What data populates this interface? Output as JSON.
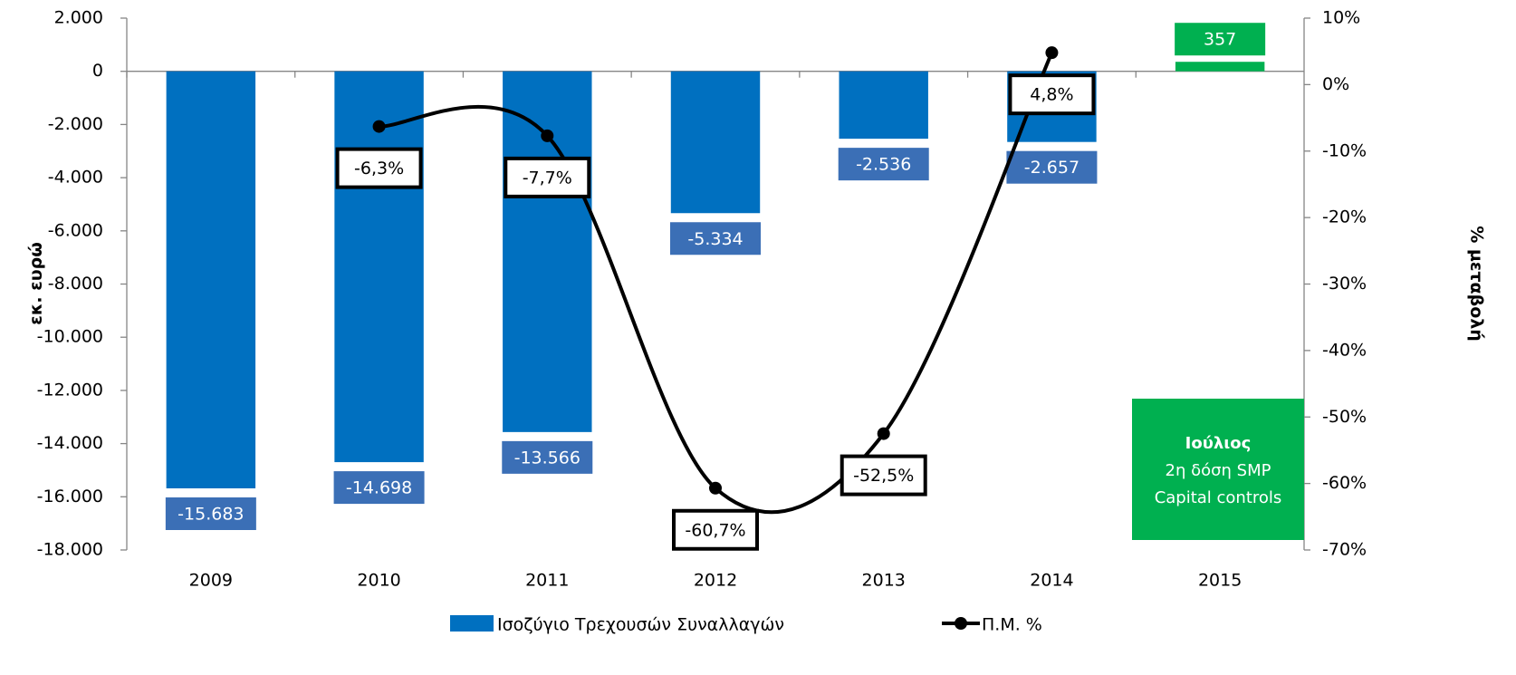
{
  "chart_data": {
    "type": "bar",
    "categories": [
      "2009",
      "2010",
      "2011",
      "2012",
      "2013",
      "2014",
      "2015"
    ],
    "series": [
      {
        "name": "Ισοζύγιο Τρεχουσών Συναλλαγών",
        "type": "bar",
        "color": "#0070c0",
        "colors": [
          "#0070c0",
          "#0070c0",
          "#0070c0",
          "#0070c0",
          "#0070c0",
          "#0070c0",
          "#00b050"
        ],
        "values": [
          -15683,
          -14698,
          -13566,
          -5334,
          -2536,
          -2657,
          357
        ],
        "value_labels": [
          "-15.683",
          "-14.698",
          "-13.566",
          "-5.334",
          "-2.536",
          "-2.657",
          "357"
        ]
      },
      {
        "name": "Π.Μ. %",
        "type": "line",
        "axis": "y2",
        "color": "#000000",
        "values": [
          null,
          -6.3,
          -7.7,
          -60.7,
          -52.5,
          4.8,
          null
        ],
        "value_labels": [
          null,
          "-6,3%",
          "-7,7%",
          "-60,7%",
          "-52,5%",
          "4,8%",
          null
        ]
      }
    ],
    "y_label": "εκ. ευρώ",
    "y2_label": "% μεταβολή",
    "ylim": [
      -18000,
      2000
    ],
    "yticks": [
      {
        "value": 2000,
        "label": "2.000"
      },
      0,
      {
        "value": -2000,
        "label": "-2.000"
      },
      {
        "value": -4000,
        "label": "-4.000"
      },
      {
        "value": -6000,
        "label": "-6.000"
      },
      {
        "value": -8000,
        "label": "-8.000"
      },
      {
        "value": -10000,
        "label": "-10.000"
      },
      {
        "value": -12000,
        "label": "-12.000"
      },
      {
        "value": -14000,
        "label": "-14.000"
      },
      {
        "value": -16000,
        "label": "-16.000"
      },
      {
        "value": -18000,
        "label": "-18.000"
      }
    ],
    "y2lim": [
      -70,
      10
    ],
    "y2ticks": [
      {
        "value": 10,
        "label": "10%"
      },
      {
        "value": 0,
        "label": "0%"
      },
      {
        "value": -10,
        "label": "-10%"
      },
      {
        "value": -20,
        "label": "-20%"
      },
      {
        "value": -30,
        "label": "-30%"
      },
      {
        "value": -40,
        "label": "-40%"
      },
      {
        "value": -50,
        "label": "-50%"
      },
      {
        "value": -60,
        "label": "-60%"
      },
      {
        "value": -70,
        "label": "-70%"
      }
    ],
    "annotation": [
      "Ιούλιος",
      "2η δόση SMP",
      "Capital controls"
    ],
    "annotation_color": "#00b050",
    "legend": "bottom"
  }
}
